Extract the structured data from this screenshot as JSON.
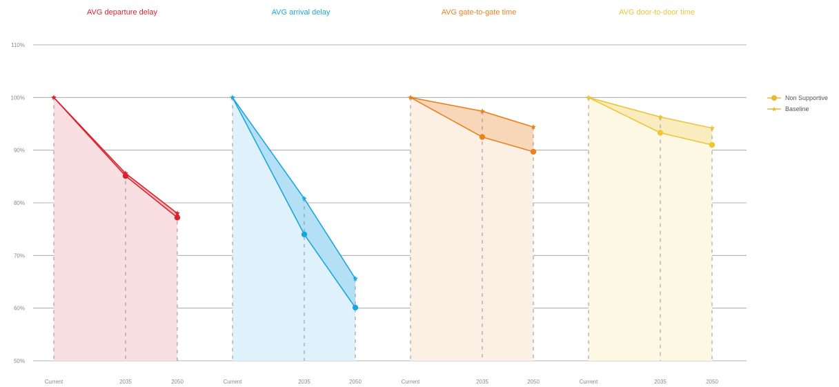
{
  "chart_data": {
    "type": "line",
    "y_axis": {
      "ylim": [
        50,
        110
      ],
      "ticks": [
        50,
        60,
        70,
        80,
        90,
        100,
        110
      ],
      "tick_labels": [
        "50%",
        "60%",
        "70%",
        "80%",
        "90%",
        "100%",
        "110%"
      ],
      "grid": true
    },
    "categories": [
      "Current",
      "2035",
      "2050"
    ],
    "legend": {
      "placement": "right",
      "entries": [
        {
          "name": "Non Supportive",
          "marker": "circle"
        },
        {
          "name": "Baseline",
          "marker": "star"
        }
      ],
      "color": "#e6b832"
    },
    "panels": [
      {
        "title": "AVG departure delay",
        "color": "#d9232e",
        "fill": "#f9dfe2",
        "series": [
          {
            "name": "Non Supportive",
            "values": [
              100,
              85.1,
              77.2
            ]
          },
          {
            "name": "Baseline",
            "values": [
              100,
              85.6,
              78.0
            ]
          }
        ]
      },
      {
        "title": "AVG arrival delay",
        "color": "#1ba5e0",
        "fill": "#dff1fb",
        "series": [
          {
            "name": "Non Supportive",
            "values": [
              100,
              74.0,
              60.1
            ]
          },
          {
            "name": "Baseline",
            "values": [
              100,
              80.8,
              65.6
            ]
          }
        ]
      },
      {
        "title": "AVG gate-to-gate time",
        "color": "#e8821e",
        "fill": "#fcefe3",
        "series": [
          {
            "name": "Non Supportive",
            "values": [
              100,
              92.5,
              89.7
            ]
          },
          {
            "name": "Baseline",
            "values": [
              100,
              97.4,
              94.4
            ]
          }
        ]
      },
      {
        "title": "AVG door-to-door time",
        "color": "#efc535",
        "fill": "#fdf8e4",
        "series": [
          {
            "name": "Non Supportive",
            "values": [
              100,
              93.3,
              91.0
            ]
          },
          {
            "name": "Baseline",
            "values": [
              100,
              96.3,
              94.2
            ]
          }
        ]
      }
    ]
  }
}
